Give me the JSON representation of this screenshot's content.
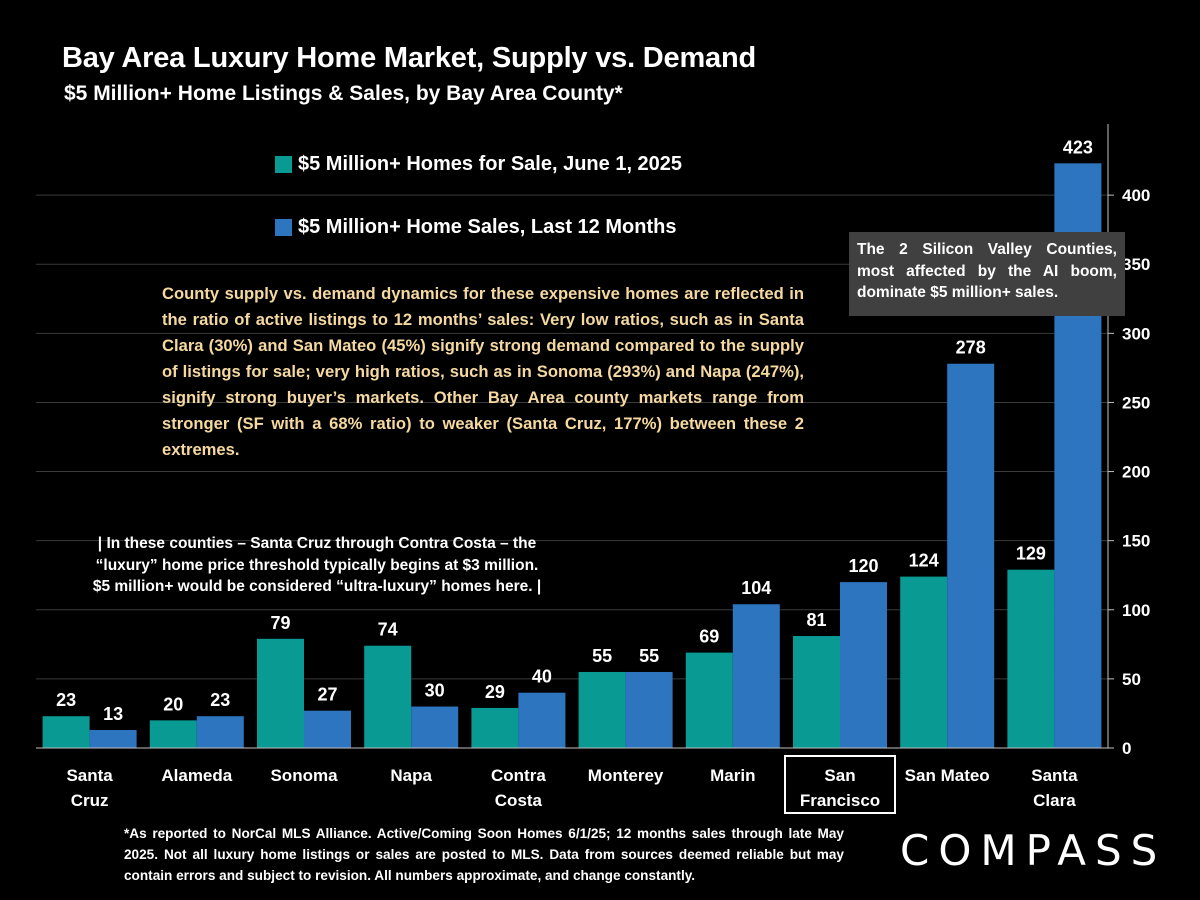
{
  "title": "Bay Area Luxury Home Market, Supply vs. Demand",
  "subtitle": "$5 Million+ Home Listings & Sales, by Bay Area County*",
  "legend": [
    {
      "label": "$5 Million+ Homes for Sale, June 1, 2025",
      "color": "#0a9a94"
    },
    {
      "label": "$5 Million+ Home Sales, Last 12 Months",
      "color": "#2e75c0"
    }
  ],
  "notes": {
    "ratio_text": "County supply vs. demand dynamics for these expensive homes are reflected in the ratio of active listings to 12 months’ sales:  Very low ratios, such as in Santa Clara (30%) and San Mateo (45%) signify strong demand compared to the supply of listings for sale; very high ratios, such as in Sonoma (293%) and Napa (247%), signify strong buyer’s markets. Other Bay Area county markets range from stronger (SF with a 68% ratio) to weaker (Santa Cruz, 177%) between these 2 extremes.",
    "callout": "The 2 Silicon Valley Counties, most affected by the AI boom, dominate $5 million+ sales.",
    "ultra_luxury_line1": "| In these counties – Santa Cruz through Contra Costa – the",
    "ultra_luxury_line2": "“luxury” home price threshold typically begins at $3 million.",
    "ultra_luxury_line3": "$5 million+ would be considered “ultra-luxury” homes here. |",
    "footnote": "*As reported to NorCal MLS Alliance. Active/Coming Soon Homes 6/1/25; 12 months sales through late May 2025. Not all luxury home listings or sales are posted to MLS. Data from sources deemed reliable but may contain errors and subject to revision. All numbers approximate, and change constantly."
  },
  "logo": "COMPASS",
  "chart_data": {
    "type": "bar",
    "categories": [
      [
        "Santa",
        "Cruz"
      ],
      [
        "Alameda"
      ],
      [
        "Sonoma"
      ],
      [
        "Napa"
      ],
      [
        "Contra",
        "Costa"
      ],
      [
        "Monterey"
      ],
      [
        "Marin"
      ],
      [
        "San",
        "Francisco"
      ],
      [
        "San Mateo"
      ],
      [
        "Santa",
        "Clara"
      ]
    ],
    "series": [
      {
        "name": "$5 Million+ Homes for Sale, June 1, 2025",
        "color": "#0a9a94",
        "values": [
          23,
          20,
          79,
          74,
          29,
          55,
          69,
          81,
          124,
          129
        ]
      },
      {
        "name": "$5 Million+ Home Sales, Last 12 Months",
        "color": "#2e75c0",
        "values": [
          13,
          23,
          27,
          30,
          40,
          55,
          104,
          120,
          278,
          423
        ]
      }
    ],
    "y_ticks": [
      "0",
      "50",
      "100",
      "150",
      "200",
      "250",
      "300",
      "350",
      "400"
    ],
    "ylim": [
      0,
      450
    ],
    "y_axis_side": "right",
    "highlighted_category": 7,
    "grid": true
  }
}
